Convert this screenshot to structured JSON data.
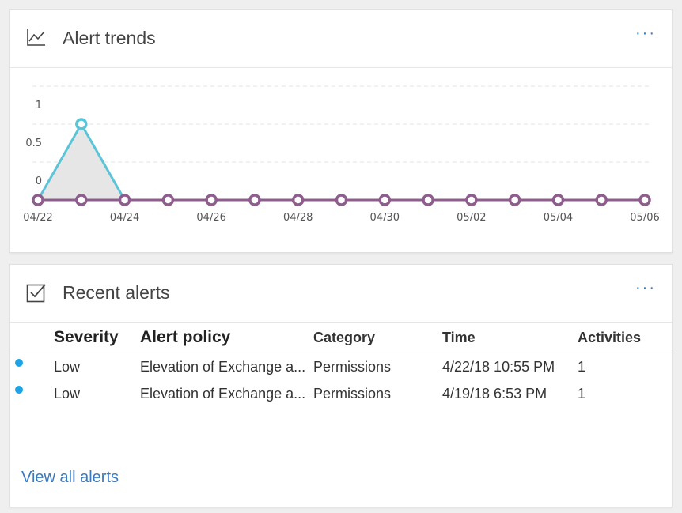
{
  "trends_card": {
    "title": "Alert trends",
    "more_label": "···"
  },
  "chart_data": {
    "type": "line",
    "title": "",
    "x": [
      "04/22",
      "04/23",
      "04/24",
      "04/25",
      "04/26",
      "04/27",
      "04/28",
      "04/29",
      "04/30",
      "05/01",
      "05/02",
      "05/03",
      "05/04",
      "05/05",
      "05/06"
    ],
    "x_tick_labels": [
      "04/22",
      "04/24",
      "04/26",
      "04/28",
      "04/30",
      "05/02",
      "05/04",
      "05/06"
    ],
    "y_tick_labels": [
      "1",
      "0.5",
      "0"
    ],
    "ylim": [
      0,
      1
    ],
    "grid": true,
    "series": [
      {
        "color": "#5bc4d8",
        "fill": "#e6e6e6",
        "values": [
          0,
          1,
          0,
          0,
          0,
          0,
          0,
          0,
          0,
          0,
          0,
          0,
          0,
          0,
          0
        ]
      },
      {
        "color": "#8e5d8e",
        "values": [
          0,
          0,
          0,
          0,
          0,
          0,
          0,
          0,
          0,
          0,
          0,
          0,
          0,
          0,
          0
        ]
      }
    ]
  },
  "alerts_card": {
    "title": "Recent alerts",
    "more_label": "···",
    "columns": {
      "severity": "Severity",
      "policy": "Alert policy",
      "category": "Category",
      "time": "Time",
      "activities": "Activities"
    },
    "rows": [
      {
        "severity": "Low",
        "policy": "Elevation of Exchange a...",
        "category": "Permissions",
        "time": "4/22/18 10:55 PM",
        "activities": "1",
        "dot_color": "#1ca3e8"
      },
      {
        "severity": "Low",
        "policy": "Elevation of Exchange a...",
        "category": "Permissions",
        "time": "4/19/18 6:53 PM",
        "activities": "1",
        "dot_color": "#1ca3e8"
      }
    ],
    "view_all_label": "View all alerts"
  },
  "colors": {
    "accent": "#3a7abf",
    "teal_series": "#5bc4d8",
    "purple_series": "#8e5d8e"
  }
}
